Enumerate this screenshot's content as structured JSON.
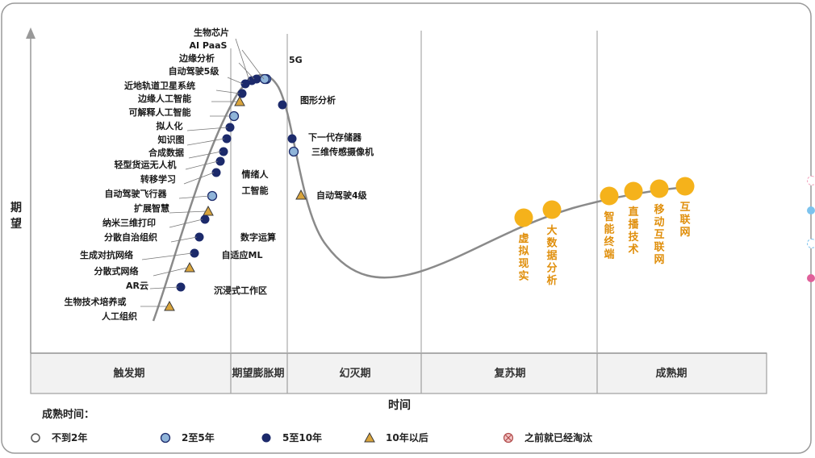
{
  "y_axis_label": "期望",
  "x_axis_label": "时间",
  "phases": [
    "触发期",
    "期望膨胀期",
    "幻灭期",
    "复苏期",
    "成熟期"
  ],
  "legend": {
    "title": "成熟时间：",
    "items": [
      {
        "label": "不到2年",
        "marker": "open-circle"
      },
      {
        "label": "2至5年",
        "marker": "light-blue-circle"
      },
      {
        "label": "5至10年",
        "marker": "navy-circle"
      },
      {
        "label": "10年以后",
        "marker": "orange-triangle"
      },
      {
        "label": "之前就已经淘汰",
        "marker": "crossed-circle"
      }
    ]
  },
  "technologies": [
    {
      "label": "生物芯片",
      "marker": "navy-circle"
    },
    {
      "label": "AI PaaS",
      "marker": "light-blue-circle"
    },
    {
      "label": "边缘分析",
      "marker": "navy-circle"
    },
    {
      "label": "自动驾驶5级",
      "marker": "navy-circle"
    },
    {
      "label": "近地轨道卫星系统",
      "marker": "navy-circle"
    },
    {
      "label": "边缘人工智能",
      "marker": "orange-triangle"
    },
    {
      "label": "可解释人工智能",
      "marker": "light-blue-circle"
    },
    {
      "label": "拟人化",
      "marker": "navy-circle"
    },
    {
      "label": "知识图",
      "marker": "navy-circle"
    },
    {
      "label": "合成数据",
      "marker": "navy-circle"
    },
    {
      "label": "轻型货运无人机",
      "marker": "navy-circle"
    },
    {
      "label": "转移学习",
      "marker": "navy-circle"
    },
    {
      "label": "自动驾驶飞行器",
      "marker": "light-blue-circle"
    },
    {
      "label": "扩展智慧",
      "marker": "orange-triangle"
    },
    {
      "label": "纳米三维打印",
      "marker": "navy-circle"
    },
    {
      "label": "分散自治组织",
      "marker": "navy-circle"
    },
    {
      "label": "生成对抗网络",
      "marker": "navy-circle"
    },
    {
      "label": "分散式网络",
      "marker": "orange-triangle"
    },
    {
      "label": "AR云",
      "marker": "navy-circle"
    },
    {
      "label": "生物技术培养或",
      "marker": "orange-triangle"
    },
    {
      "label": "人工组织",
      "marker": "none"
    },
    {
      "label": "5G",
      "marker": "light-blue-circle"
    },
    {
      "label": "图形分析",
      "marker": "navy-circle"
    },
    {
      "label": "下一代存储器",
      "marker": "navy-circle"
    },
    {
      "label": "三维传感摄像机",
      "marker": "light-blue-circle"
    },
    {
      "label": "自动驾驶4级",
      "marker": "orange-triangle"
    },
    {
      "label": "情绪人",
      "marker": "none"
    },
    {
      "label": "工智能",
      "marker": "none"
    },
    {
      "label": "数字运算",
      "marker": "none"
    },
    {
      "label": "自适应ML",
      "marker": "none"
    },
    {
      "label": "沉浸式工作区",
      "marker": "none"
    }
  ],
  "highlights": [
    "虚拟现实",
    "大数据分析",
    "智能终端",
    "直播技术",
    "移动互联网",
    "互联网"
  ],
  "colors": {
    "navy": "#1c2a6b",
    "light_blue": "#8fb4d9",
    "triangle": "#d9a43c",
    "highlight": "#f5b21b",
    "highlight_text": "#e08f0c",
    "curve": "#888888",
    "frame": "#999999",
    "phase_band": "#f2f2f2",
    "deco_pink": "#f2a3bd",
    "deco_blue": "#7cc3ee",
    "deco_magenta": "#e0609a"
  }
}
